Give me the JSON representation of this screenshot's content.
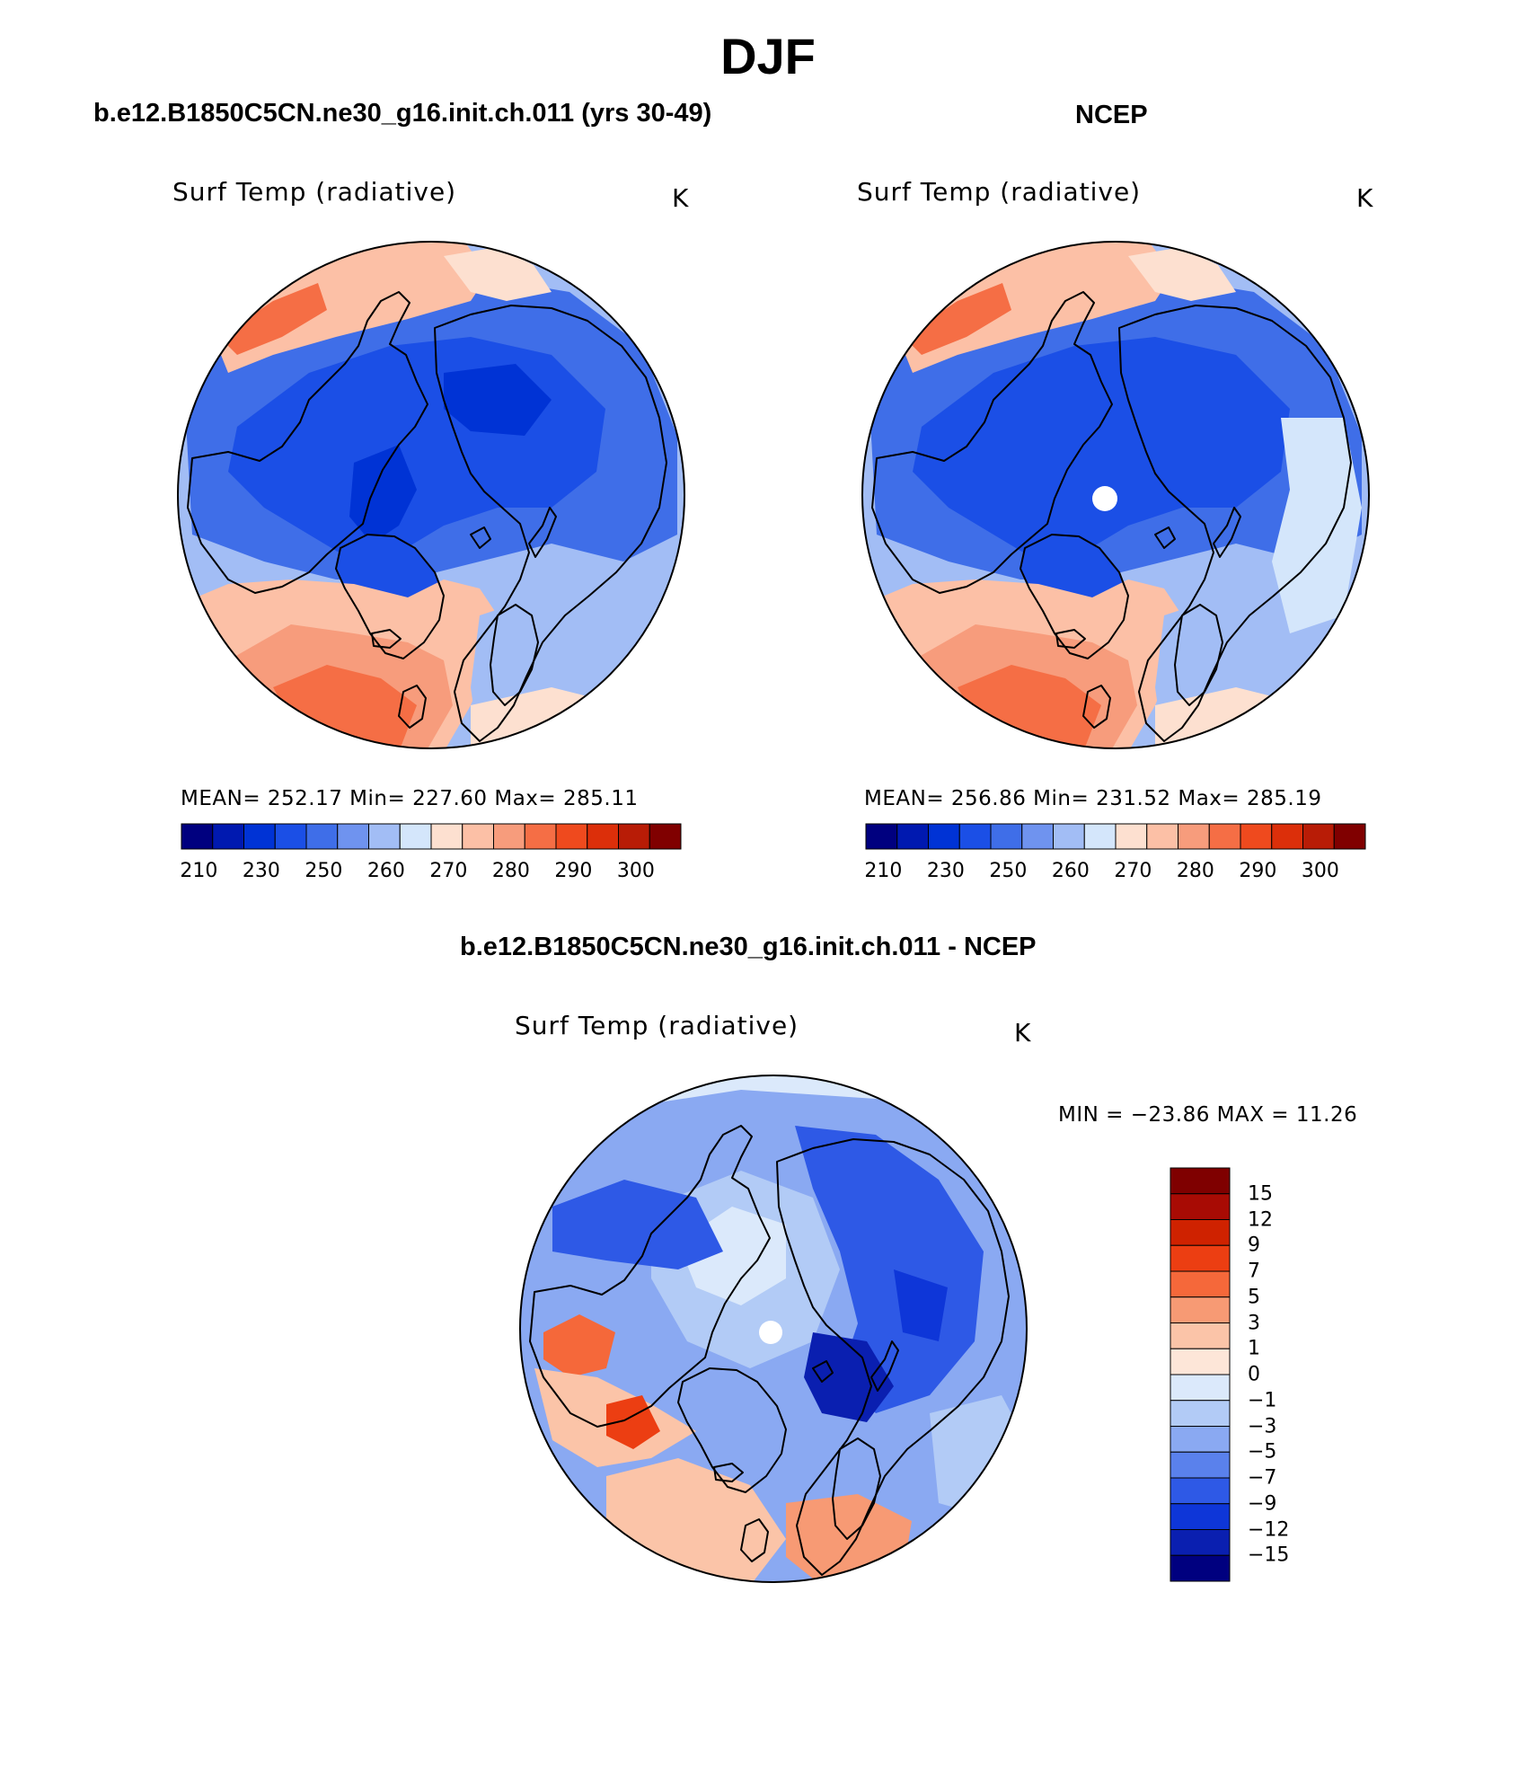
{
  "figure": {
    "title": "DJF"
  },
  "panels": [
    {
      "title": "b.e12.B1850C5CN.ne30_g16.init.ch.011 (yrs 30-49)",
      "variable": "Surf Temp (radiative)",
      "units": "K",
      "stats_text": "MEAN=  252.17   Min=  227.60   Max=  285.11",
      "colorbar_ticks": [
        "210",
        "230",
        "250",
        "260",
        "270",
        "280",
        "290",
        "300"
      ]
    },
    {
      "title": "NCEP",
      "variable": "Surf Temp (radiative)",
      "units": "K",
      "stats_text": "MEAN=  256.86   Min=  231.52   Max=  285.19",
      "colorbar_ticks": [
        "210",
        "230",
        "250",
        "260",
        "270",
        "280",
        "290",
        "300"
      ]
    },
    {
      "title": "b.e12.B1850C5CN.ne30_g16.init.ch.011 - NCEP",
      "variable": "Surf Temp (radiative)",
      "units": "K",
      "stats_text": "MIN = −23.86  MAX =   11.26",
      "colorbar_ticks": [
        "15",
        "12",
        "9",
        "7",
        "5",
        "3",
        "1",
        "0",
        "−1",
        "−3",
        "−5",
        "−7",
        "−9",
        "−12",
        "−15"
      ]
    }
  ],
  "chart_data": [
    {
      "type": "heatmap",
      "title": "b.e12.B1850C5CN.ne30_g16.init.ch.011 (yrs 30-49)",
      "variable": "Surf Temp (radiative)",
      "units": "K",
      "projection": "north polar stereographic",
      "mean": 252.17,
      "min": 227.6,
      "max": 285.11,
      "colorbar_ticks": [
        210,
        230,
        250,
        260,
        270,
        280,
        290,
        300
      ],
      "colorbar_colors": [
        "#00007f",
        "#0019b0",
        "#0033d5",
        "#1b4fe6",
        "#3f6ee8",
        "#6f93ef",
        "#a2bdf5",
        "#d4e6fb",
        "#fde0d0",
        "#fcc0a6",
        "#f79c7c",
        "#f56e45",
        "#ef4a1e",
        "#dc2f0a",
        "#b81c06",
        "#800000"
      ]
    },
    {
      "type": "heatmap",
      "title": "NCEP",
      "variable": "Surf Temp (radiative)",
      "units": "K",
      "projection": "north polar stereographic",
      "mean": 256.86,
      "min": 231.52,
      "max": 285.19,
      "colorbar_ticks": [
        210,
        230,
        250,
        260,
        270,
        280,
        290,
        300
      ],
      "colorbar_colors": [
        "#00007f",
        "#0019b0",
        "#0033d5",
        "#1b4fe6",
        "#3f6ee8",
        "#6f93ef",
        "#a2bdf5",
        "#d4e6fb",
        "#fde0d0",
        "#fcc0a6",
        "#f79c7c",
        "#f56e45",
        "#ef4a1e",
        "#dc2f0a",
        "#b81c06",
        "#800000"
      ]
    },
    {
      "type": "heatmap",
      "title": "b.e12.B1850C5CN.ne30_g16.init.ch.011 - NCEP",
      "variable": "Surf Temp (radiative)",
      "units": "K",
      "projection": "north polar stereographic",
      "min": -23.86,
      "max": 11.26,
      "colorbar_ticks": [
        15,
        12,
        9,
        7,
        5,
        3,
        1,
        0,
        -1,
        -3,
        -5,
        -7,
        -9,
        -12,
        -15
      ],
      "colorbar_colors": [
        "#7f0000",
        "#a80b04",
        "#cf2200",
        "#ec3e12",
        "#f5683a",
        "#f79a74",
        "#fbc4a8",
        "#fde6d8",
        "#dbe9fb",
        "#b2cbf6",
        "#8aa9f2",
        "#5a81ec",
        "#2e59e6",
        "#0e36d8",
        "#0a1fb0",
        "#00007f"
      ]
    }
  ]
}
